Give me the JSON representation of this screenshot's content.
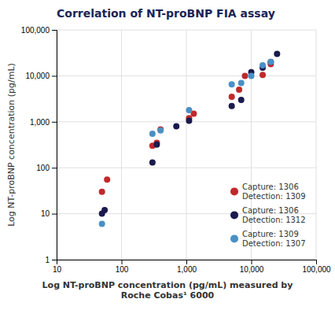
{
  "chart_data": {
    "type": "scatter",
    "title": "Correlation of NT-proBNP FIA assay",
    "xlabel": "Log NT-proBNP concentration (pg/mL) measured by\nRoche Cobas¹ 6000",
    "ylabel": "Log NT-proBNP concentration (pg/mL)",
    "log": true,
    "xlim": [
      10,
      100000
    ],
    "ylim": [
      1,
      100000
    ],
    "xticks": [
      10,
      100,
      {
        "value": 1000,
        "label": "1,000"
      },
      {
        "value": 10000,
        "label": "10,000"
      },
      {
        "value": 100000,
        "label": "100,000"
      }
    ],
    "yticks": [
      1,
      10,
      100,
      {
        "value": 1000,
        "label": "1,000"
      },
      {
        "value": 10000,
        "label": "10,000"
      },
      {
        "value": 100000,
        "label": "100,000"
      }
    ],
    "grid": true,
    "legend": "lower right",
    "series": [
      {
        "name": "Capture: 1306\nDetection: 1309",
        "color": "#c0292b",
        "x": [
          50,
          60,
          300,
          350,
          400,
          1100,
          1300,
          5000,
          6500,
          8000,
          15000,
          20000
        ],
        "values": [
          30,
          55,
          300,
          350,
          680,
          1200,
          1500,
          3500,
          5000,
          10000,
          10500,
          18000
        ]
      },
      {
        "name": "Capture: 1306\nDetection: 1312",
        "color": "#1a1a4e",
        "x": [
          50,
          55,
          300,
          350,
          700,
          1100,
          5000,
          7000,
          10000,
          15000,
          20000,
          25000
        ],
        "values": [
          10,
          12,
          130,
          320,
          800,
          1050,
          2200,
          3000,
          12000,
          15000,
          20000,
          30000
        ]
      },
      {
        "name": "Capture: 1309\nDetection: 1307",
        "color": "#4a90c4",
        "x": [
          50,
          300,
          400,
          1100,
          5000,
          7000,
          10000,
          15000,
          20000
        ],
        "values": [
          6,
          550,
          650,
          1800,
          6500,
          7000,
          10000,
          17000,
          20000
        ]
      }
    ]
  }
}
